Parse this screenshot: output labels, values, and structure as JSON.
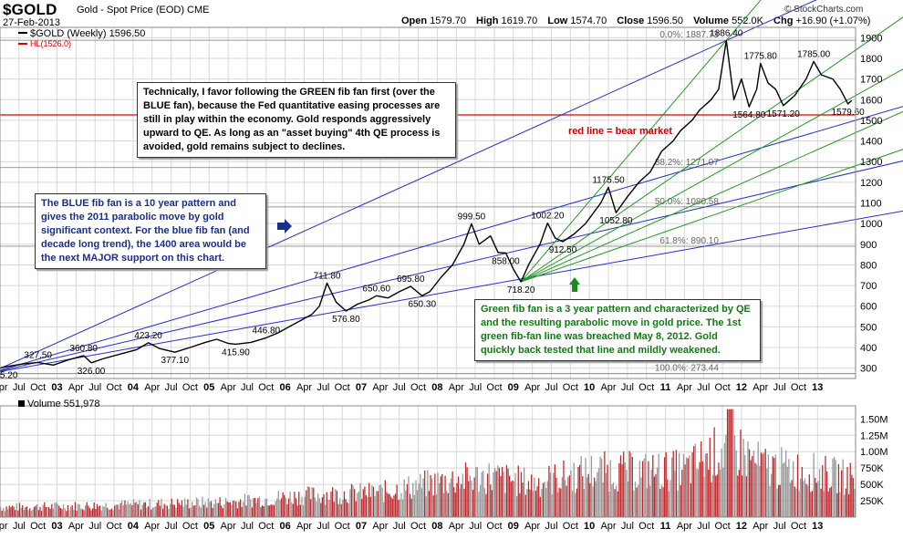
{
  "header": {
    "ticker": "$GOLD",
    "name": "Gold - Spot Price (EOD)",
    "exchange": "CME",
    "date": "27-Feb-2013",
    "copyright": "© StockCharts.com",
    "open_label": "Open",
    "open": "1579.70",
    "high_label": "High",
    "high": "1619.70",
    "low_label": "Low",
    "low": "1574.70",
    "close_label": "Close",
    "close": "1596.50",
    "volume_label": "Volume",
    "volume": "552.0K",
    "chg_label": "Chg",
    "chg": "+16.90 (+1.07%)"
  },
  "legend": {
    "price": "$GOLD (Weekly) 1596.50",
    "hl": "HL(1526.0)"
  },
  "annotations": {
    "note_black": "Technically, I favor following the GREEN fib fan first (over the BLUE fan), because the Fed quantitative easing processes are still in play within the economy.  Gold responds aggressively upward to QE.  As long as an \"asset buying\" 4th QE process is avoided, gold remains subject to declines.",
    "note_blue": "The BLUE fib fan is a 10 year pattern and gives the 2011 parabolic move by gold significant context.  For the blue fib fan (and decade long trend), the 1400 area would be the next MAJOR support on this chart.",
    "note_green": "Green fib fan is a 3 year pattern and characterized by QE and the resulting parabolic move in gold price.  The 1st green fib-fan line was breached May 8, 2012.  Gold quickly back tested that line and mildly weakened.",
    "red_line": "red line = bear market"
  },
  "colors": {
    "price": "#000000",
    "hl_line": "#e00000",
    "blue_fan": "#1f2fd0",
    "green_fan": "#1f9a1f",
    "grid": "#d8d8d8",
    "vol_up": "#999999",
    "vol_down": "#c0282d"
  },
  "chart_data": [
    {
      "type": "line",
      "title": "$GOLD (Weekly) 1596.50",
      "ylim": [
        250,
        1950
      ],
      "yticks": [
        "300",
        "400",
        "500",
        "600",
        "700",
        "800",
        "900",
        "1000",
        "1100",
        "1200",
        "1300",
        "1400",
        "1500",
        "1600",
        "1700",
        "1800",
        "1900"
      ],
      "x_period": [
        2002.0,
        2013.25
      ],
      "xticks": [
        {
          "t": 2002.0,
          "label": "Apr"
        },
        {
          "t": 2002.25,
          "label": "Jul"
        },
        {
          "t": 2002.5,
          "label": "Oct"
        },
        {
          "t": 2002.75,
          "label": "03"
        },
        {
          "t": 2003.0,
          "label": "Apr"
        },
        {
          "t": 2003.25,
          "label": "Jul"
        },
        {
          "t": 2003.5,
          "label": "Oct"
        },
        {
          "t": 2003.75,
          "label": "04"
        },
        {
          "t": 2004.0,
          "label": "Apr"
        },
        {
          "t": 2004.25,
          "label": "Jul"
        },
        {
          "t": 2004.5,
          "label": "Oct"
        },
        {
          "t": 2004.75,
          "label": "05"
        },
        {
          "t": 2005.0,
          "label": "Apr"
        },
        {
          "t": 2005.25,
          "label": "Jul"
        },
        {
          "t": 2005.5,
          "label": "Oct"
        },
        {
          "t": 2005.75,
          "label": "06"
        },
        {
          "t": 2006.0,
          "label": "Apr"
        },
        {
          "t": 2006.25,
          "label": "Jul"
        },
        {
          "t": 2006.5,
          "label": "Oct"
        },
        {
          "t": 2006.75,
          "label": "07"
        },
        {
          "t": 2007.0,
          "label": "Apr"
        },
        {
          "t": 2007.25,
          "label": "Jul"
        },
        {
          "t": 2007.5,
          "label": "Oct"
        },
        {
          "t": 2007.75,
          "label": "08"
        },
        {
          "t": 2008.0,
          "label": "Apr"
        },
        {
          "t": 2008.25,
          "label": "Jul"
        },
        {
          "t": 2008.5,
          "label": "Oct"
        },
        {
          "t": 2008.75,
          "label": "09"
        },
        {
          "t": 2009.0,
          "label": "Apr"
        },
        {
          "t": 2009.25,
          "label": "Jul"
        },
        {
          "t": 2009.5,
          "label": "Oct"
        },
        {
          "t": 2009.75,
          "label": "10"
        },
        {
          "t": 2010.0,
          "label": "Apr"
        },
        {
          "t": 2010.25,
          "label": "Jul"
        },
        {
          "t": 2010.5,
          "label": "Oct"
        },
        {
          "t": 2010.75,
          "label": "11"
        },
        {
          "t": 2011.0,
          "label": "Apr"
        },
        {
          "t": 2011.25,
          "label": "Jul"
        },
        {
          "t": 2011.5,
          "label": "Oct"
        },
        {
          "t": 2011.75,
          "label": "12"
        },
        {
          "t": 2012.0,
          "label": "Apr"
        },
        {
          "t": 2012.25,
          "label": "Jul"
        },
        {
          "t": 2012.5,
          "label": "Oct"
        },
        {
          "t": 2012.75,
          "label": "13"
        }
      ],
      "price_path": [
        [
          2001.9,
          290
        ],
        [
          2002.05,
          305
        ],
        [
          2002.3,
          320
        ],
        [
          2002.5,
          327.5
        ],
        [
          2002.7,
          315
        ],
        [
          2002.9,
          340
        ],
        [
          2003.1,
          360.8
        ],
        [
          2003.2,
          326
        ],
        [
          2003.35,
          345
        ],
        [
          2003.6,
          370
        ],
        [
          2003.8,
          390
        ],
        [
          2003.95,
          423.2
        ],
        [
          2004.1,
          395
        ],
        [
          2004.3,
          377.1
        ],
        [
          2004.5,
          400
        ],
        [
          2004.7,
          425
        ],
        [
          2004.85,
          440
        ],
        [
          2005.0,
          420
        ],
        [
          2005.1,
          415.9
        ],
        [
          2005.3,
          425
        ],
        [
          2005.5,
          446.8
        ],
        [
          2005.65,
          470
        ],
        [
          2005.8,
          500
        ],
        [
          2005.95,
          530
        ],
        [
          2006.1,
          560
        ],
        [
          2006.2,
          600
        ],
        [
          2006.3,
          711.8
        ],
        [
          2006.42,
          620
        ],
        [
          2006.55,
          576.8
        ],
        [
          2006.7,
          610
        ],
        [
          2006.85,
          630
        ],
        [
          2006.95,
          650.6
        ],
        [
          2007.1,
          640
        ],
        [
          2007.25,
          670
        ],
        [
          2007.4,
          695.8
        ],
        [
          2007.55,
          650.3
        ],
        [
          2007.65,
          670
        ],
        [
          2007.8,
          740
        ],
        [
          2007.95,
          800
        ],
        [
          2008.1,
          900
        ],
        [
          2008.2,
          999.5
        ],
        [
          2008.3,
          900
        ],
        [
          2008.45,
          940
        ],
        [
          2008.55,
          860
        ],
        [
          2008.65,
          858
        ],
        [
          2008.75,
          780
        ],
        [
          2008.85,
          718.2
        ],
        [
          2008.95,
          800
        ],
        [
          2009.1,
          900
        ],
        [
          2009.2,
          1002.2
        ],
        [
          2009.3,
          930
        ],
        [
          2009.4,
          912.5
        ],
        [
          2009.55,
          950
        ],
        [
          2009.7,
          1000
        ],
        [
          2009.9,
          1100
        ],
        [
          2010.0,
          1175.5
        ],
        [
          2010.1,
          1052.8
        ],
        [
          2010.25,
          1130
        ],
        [
          2010.4,
          1200
        ],
        [
          2010.55,
          1250
        ],
        [
          2010.7,
          1350
        ],
        [
          2010.85,
          1400
        ],
        [
          2010.95,
          1450
        ],
        [
          2011.1,
          1500
        ],
        [
          2011.2,
          1550
        ],
        [
          2011.35,
          1600
        ],
        [
          2011.45,
          1650
        ],
        [
          2011.55,
          1886.4
        ],
        [
          2011.65,
          1600
        ],
        [
          2011.75,
          1700
        ],
        [
          2011.85,
          1564.8
        ],
        [
          2011.95,
          1650
        ],
        [
          2012.0,
          1775.8
        ],
        [
          2012.1,
          1680
        ],
        [
          2012.2,
          1650
        ],
        [
          2012.3,
          1571.2
        ],
        [
          2012.45,
          1620
        ],
        [
          2012.6,
          1700
        ],
        [
          2012.7,
          1785
        ],
        [
          2012.8,
          1720
        ],
        [
          2012.95,
          1700
        ],
        [
          2013.05,
          1650
        ],
        [
          2013.15,
          1579.6
        ],
        [
          2013.2,
          1596.5
        ]
      ],
      "price_labels": [
        {
          "t": 2002.05,
          "v": 305.2,
          "label": "305.20",
          "pos": "below"
        },
        {
          "t": 2002.5,
          "v": 327.5,
          "label": "327.50",
          "pos": "above"
        },
        {
          "t": 2003.1,
          "v": 360.8,
          "label": "360.80",
          "pos": "above"
        },
        {
          "t": 2003.2,
          "v": 326.0,
          "label": "326.00",
          "pos": "below"
        },
        {
          "t": 2003.95,
          "v": 423.2,
          "label": "423.20",
          "pos": "above"
        },
        {
          "t": 2004.3,
          "v": 377.1,
          "label": "377.10",
          "pos": "below"
        },
        {
          "t": 2005.5,
          "v": 446.8,
          "label": "446.80",
          "pos": "above"
        },
        {
          "t": 2005.1,
          "v": 415.9,
          "label": "415.90",
          "pos": "below"
        },
        {
          "t": 2006.3,
          "v": 711.8,
          "label": "711.80",
          "pos": "above"
        },
        {
          "t": 2006.55,
          "v": 576.8,
          "label": "576.80",
          "pos": "below"
        },
        {
          "t": 2006.95,
          "v": 650.6,
          "label": "650.60",
          "pos": "above"
        },
        {
          "t": 2007.4,
          "v": 695.8,
          "label": "695.80",
          "pos": "above"
        },
        {
          "t": 2007.55,
          "v": 650.3,
          "label": "650.30",
          "pos": "below"
        },
        {
          "t": 2008.2,
          "v": 999.5,
          "label": "999.50",
          "pos": "above"
        },
        {
          "t": 2008.65,
          "v": 858.0,
          "label": "858.00",
          "pos": "below"
        },
        {
          "t": 2008.85,
          "v": 718.2,
          "label": "718.20",
          "pos": "below"
        },
        {
          "t": 2009.2,
          "v": 1002.2,
          "label": "1002.20",
          "pos": "above"
        },
        {
          "t": 2009.4,
          "v": 912.5,
          "label": "912.50",
          "pos": "below"
        },
        {
          "t": 2010.0,
          "v": 1175.5,
          "label": "1175.50",
          "pos": "above"
        },
        {
          "t": 2010.1,
          "v": 1052.8,
          "label": "1052.80",
          "pos": "below"
        },
        {
          "t": 2011.55,
          "v": 1886.4,
          "label": "1886.40",
          "pos": "above"
        },
        {
          "t": 2011.85,
          "v": 1564.8,
          "label": "1564.80",
          "pos": "below"
        },
        {
          "t": 2012.0,
          "v": 1775.8,
          "label": "1775.80",
          "pos": "above"
        },
        {
          "t": 2012.3,
          "v": 1571.2,
          "label": "1571.20",
          "pos": "below"
        },
        {
          "t": 2012.7,
          "v": 1785.0,
          "label": "1785.00",
          "pos": "above"
        },
        {
          "t": 2013.15,
          "v": 1579.6,
          "label": "1579.60",
          "pos": "below"
        }
      ],
      "hl_value": 1526.0,
      "fib_retracements": [
        {
          "v": 1887.73,
          "label": "0.0%: 1887.73"
        },
        {
          "v": 1271.07,
          "label": "38.2%: 1271.07"
        },
        {
          "v": 1080.58,
          "label": "50.0%: 1080.58"
        },
        {
          "v": 890.1,
          "label": "61.8%: 890.10"
        },
        {
          "v": 273.44,
          "label": "100.0%: 273.44"
        }
      ],
      "blue_fan": {
        "origin": [
          2001.85,
          273.44
        ],
        "ends": [
          [
            2011.55,
            1886.4
          ],
          [
            2013.25,
            1500
          ],
          [
            2013.25,
            1250
          ],
          [
            2013.25,
            1020
          ]
        ]
      },
      "green_fan": {
        "origin": [
          2008.85,
          718.2
        ],
        "ends": [
          [
            2011.55,
            1886.4
          ],
          [
            2013.25,
            1840
          ],
          [
            2013.25,
            1620
          ],
          [
            2013.25,
            1440
          ],
          [
            2013.25,
            1280
          ]
        ]
      }
    },
    {
      "type": "bar",
      "title": "Volume 551,978",
      "ylim": [
        0,
        1700000
      ],
      "yticks": [
        "250K",
        "500K",
        "750K",
        "1.00M",
        "1.25M",
        "1.50M"
      ],
      "volume_profile": [
        [
          2002.0,
          150000
        ],
        [
          2003.0,
          170000
        ],
        [
          2004.0,
          200000
        ],
        [
          2005.0,
          230000
        ],
        [
          2006.0,
          330000
        ],
        [
          2007.0,
          380000
        ],
        [
          2007.9,
          560000
        ],
        [
          2008.4,
          620000
        ],
        [
          2009.0,
          520000
        ],
        [
          2009.8,
          700000
        ],
        [
          2010.5,
          700000
        ],
        [
          2011.0,
          720000
        ],
        [
          2011.6,
          1100000
        ],
        [
          2012.0,
          780000
        ],
        [
          2012.6,
          700000
        ],
        [
          2013.2,
          600000
        ]
      ]
    }
  ]
}
